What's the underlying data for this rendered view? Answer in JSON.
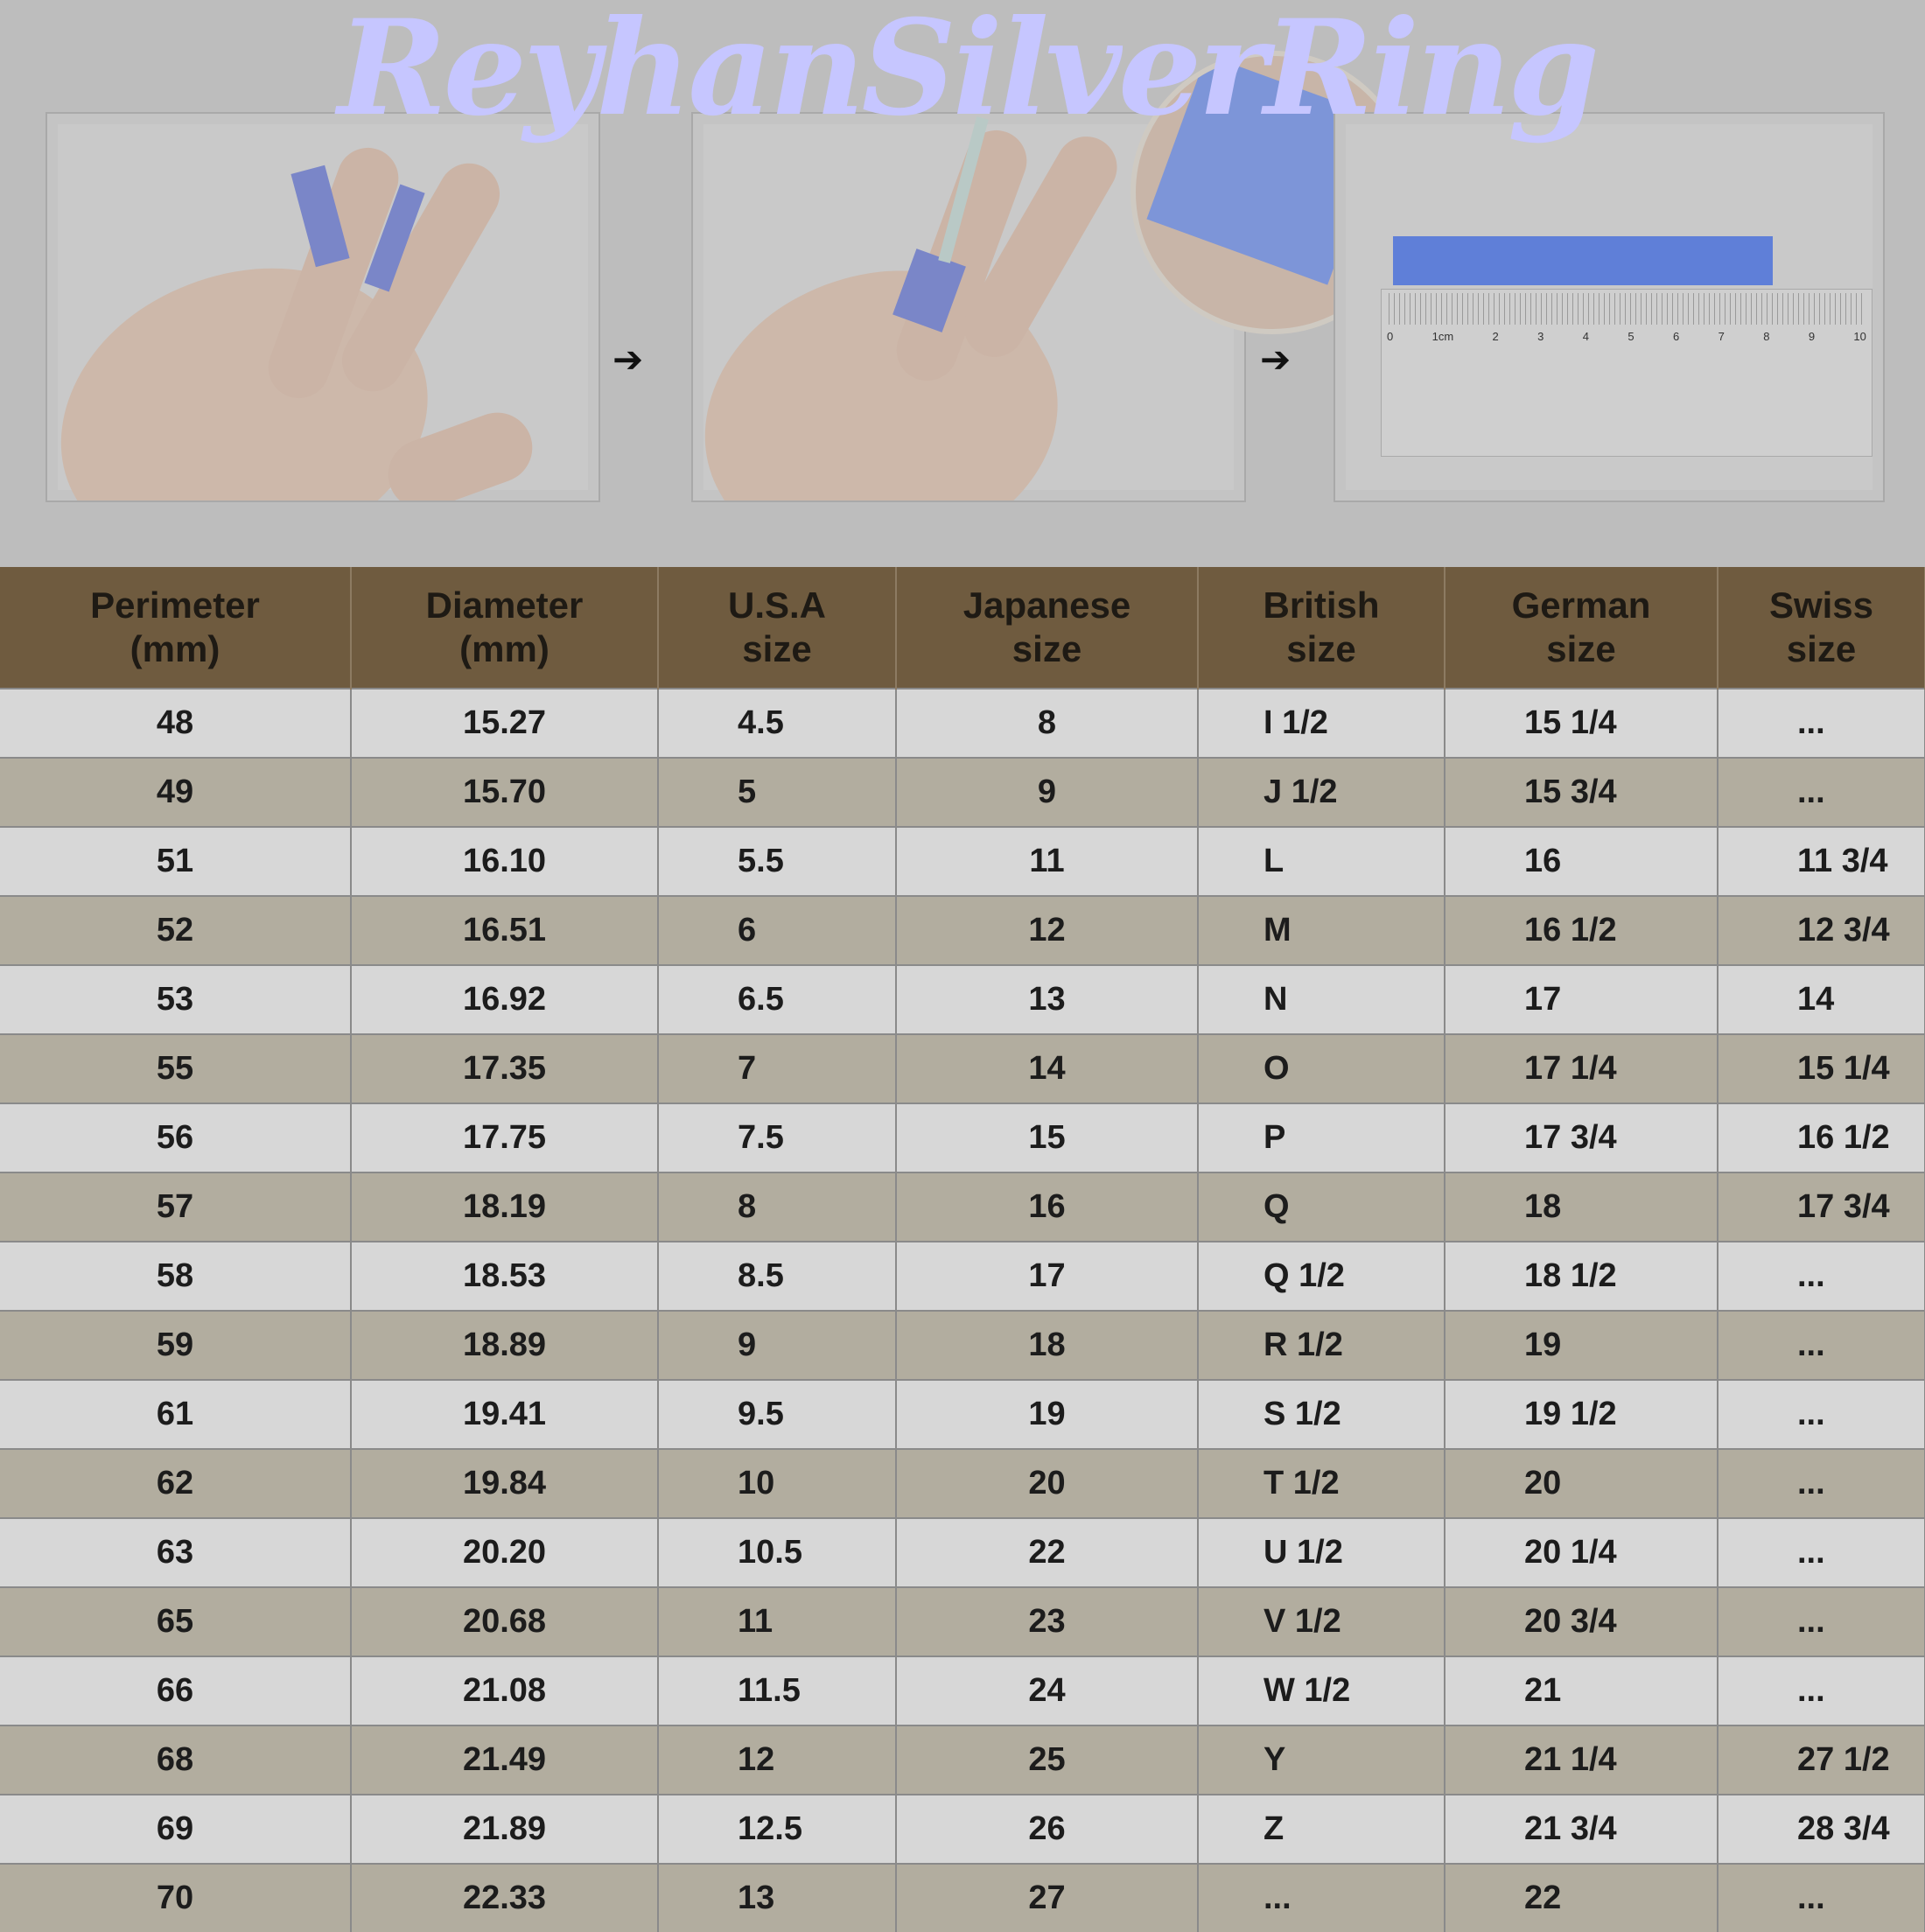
{
  "watermark_title": "ReyhanSilverRing",
  "instructions": {
    "arrow_icon": "right-arrow",
    "ruler_labels": [
      "0",
      "1cm",
      "2",
      "3",
      "4",
      "5",
      "6",
      "7",
      "8",
      "9",
      "10"
    ]
  },
  "colors": {
    "header_bg": "#6f5b3f",
    "row_light": "#d7d7d7",
    "row_dark": "#b2ad9f",
    "title": "#c6c6ff"
  },
  "table": {
    "headers": [
      [
        "Perimeter",
        "(mm)"
      ],
      [
        "Diameter",
        "(mm)"
      ],
      [
        "U.S.A",
        "size"
      ],
      [
        "Japanese",
        "size"
      ],
      [
        "British",
        "size"
      ],
      [
        "German",
        "size"
      ],
      [
        "Swiss",
        "size"
      ]
    ],
    "rows": [
      [
        "48",
        "15.27",
        "4.5",
        "8",
        "I 1/2",
        "15 1/4",
        "..."
      ],
      [
        "49",
        "15.70",
        "5",
        "9",
        "J 1/2",
        "15 3/4",
        "..."
      ],
      [
        "51",
        "16.10",
        "5.5",
        "11",
        "L",
        "16",
        "11 3/4"
      ],
      [
        "52",
        "16.51",
        "6",
        "12",
        "M",
        "16 1/2",
        "12 3/4"
      ],
      [
        "53",
        "16.92",
        "6.5",
        "13",
        "N",
        "17",
        "14"
      ],
      [
        "55",
        "17.35",
        "7",
        "14",
        "O",
        "17 1/4",
        "15 1/4"
      ],
      [
        "56",
        "17.75",
        "7.5",
        "15",
        "P",
        "17 3/4",
        "16 1/2"
      ],
      [
        "57",
        "18.19",
        "8",
        "16",
        "Q",
        "18",
        "17 3/4"
      ],
      [
        "58",
        "18.53",
        "8.5",
        "17",
        "Q 1/2",
        "18 1/2",
        "..."
      ],
      [
        "59",
        "18.89",
        "9",
        "18",
        "R 1/2",
        "19",
        "..."
      ],
      [
        "61",
        "19.41",
        "9.5",
        "19",
        "S 1/2",
        "19 1/2",
        "..."
      ],
      [
        "62",
        "19.84",
        "10",
        "20",
        "T 1/2",
        "20",
        "..."
      ],
      [
        "63",
        "20.20",
        "10.5",
        "22",
        "U 1/2",
        "20 1/4",
        "..."
      ],
      [
        "65",
        "20.68",
        "11",
        "23",
        "V 1/2",
        "20 3/4",
        "..."
      ],
      [
        "66",
        "21.08",
        "11.5",
        "24",
        "W 1/2",
        "21",
        "..."
      ],
      [
        "68",
        "21.49",
        "12",
        "25",
        "Y",
        "21 1/4",
        "27 1/2"
      ],
      [
        "69",
        "21.89",
        "12.5",
        "26",
        "Z",
        "21 3/4",
        "28 3/4"
      ],
      [
        "70",
        "22.33",
        "13",
        "27",
        "...",
        "22",
        "..."
      ]
    ]
  }
}
